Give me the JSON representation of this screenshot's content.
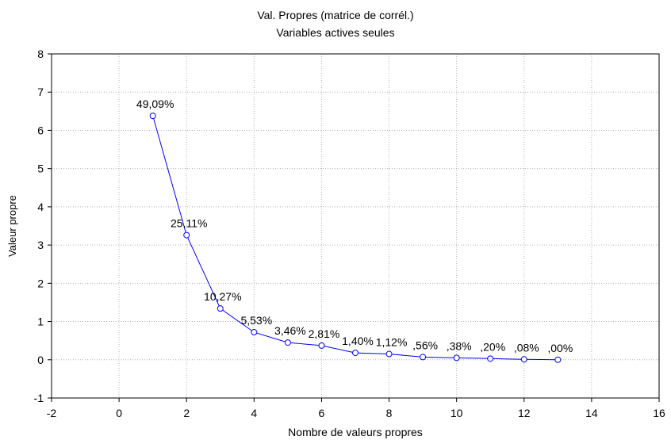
{
  "chart_data": {
    "type": "line",
    "title": "Val. Propres (matrice de corrél.)",
    "subtitle": "Variables actives seules",
    "xlabel": "Nombre de valeurs propres",
    "ylabel": "Valeur propre",
    "xlim": [
      -2,
      16
    ],
    "ylim": [
      -1,
      8
    ],
    "x_ticks": [
      "-2",
      "0",
      "2",
      "4",
      "6",
      "8",
      "10",
      "12",
      "14",
      "16"
    ],
    "y_ticks": [
      "-1",
      "0",
      "1",
      "2",
      "3",
      "4",
      "5",
      "6",
      "7",
      "8"
    ],
    "grid": true,
    "line_color": "#0000ff",
    "points": [
      {
        "x": 1,
        "y": 6.38,
        "label": "49,09%"
      },
      {
        "x": 2,
        "y": 3.26,
        "label": "25,11%"
      },
      {
        "x": 3,
        "y": 1.34,
        "label": "10,27%"
      },
      {
        "x": 4,
        "y": 0.72,
        "label": "5,53%"
      },
      {
        "x": 5,
        "y": 0.45,
        "label": "3,46%"
      },
      {
        "x": 6,
        "y": 0.37,
        "label": "2,81%"
      },
      {
        "x": 7,
        "y": 0.18,
        "label": "1,40%"
      },
      {
        "x": 8,
        "y": 0.15,
        "label": "1,12%"
      },
      {
        "x": 9,
        "y": 0.07,
        "label": ",56%"
      },
      {
        "x": 10,
        "y": 0.05,
        "label": ",38%"
      },
      {
        "x": 11,
        "y": 0.03,
        "label": ",20%"
      },
      {
        "x": 12,
        "y": 0.01,
        "label": ",08%"
      },
      {
        "x": 13,
        "y": 0.0,
        "label": ",00%"
      }
    ]
  }
}
